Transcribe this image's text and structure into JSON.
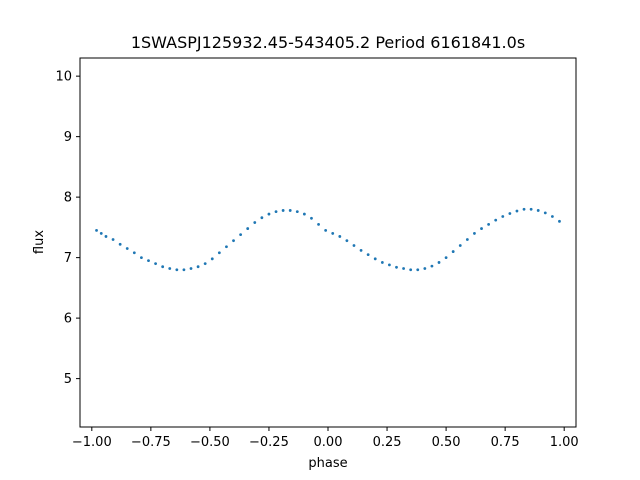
{
  "chart_data": {
    "type": "scatter",
    "title": "1SWASPJ125932.45-543405.2 Period 6161841.0s",
    "xlabel": "phase",
    "ylabel": "flux",
    "xlim": [
      -1.05,
      1.05
    ],
    "ylim": [
      4.2,
      10.3
    ],
    "xticks": [
      -1.0,
      -0.75,
      -0.5,
      -0.25,
      0.0,
      0.25,
      0.5,
      0.75,
      1.0
    ],
    "xtick_labels": [
      "−1.00",
      "−0.75",
      "−0.50",
      "−0.25",
      "0.00",
      "0.25",
      "0.50",
      "0.75",
      "1.00"
    ],
    "yticks": [
      5,
      6,
      7,
      8,
      9,
      10
    ],
    "ytick_labels": [
      "5",
      "6",
      "7",
      "8",
      "9",
      "10"
    ],
    "grid": false,
    "legend": "none",
    "marker_color": "#1f77b4",
    "series": [
      {
        "x": [
          -0.98,
          -0.96,
          -0.94,
          -0.91,
          -0.88,
          -0.85,
          -0.82,
          -0.79,
          -0.76,
          -0.73,
          -0.7,
          -0.67,
          -0.64,
          -0.61,
          -0.58,
          -0.55,
          -0.52,
          -0.49,
          -0.46,
          -0.43,
          -0.4,
          -0.37,
          -0.34,
          -0.31,
          -0.28,
          -0.25,
          -0.22,
          -0.19,
          -0.16,
          -0.13,
          -0.1,
          -0.07,
          -0.04,
          -0.01,
          0.02,
          0.05,
          0.08,
          0.11,
          0.14,
          0.17,
          0.2,
          0.23,
          0.26,
          0.29,
          0.32,
          0.35,
          0.38,
          0.41,
          0.44,
          0.47,
          0.5,
          0.53,
          0.56,
          0.59,
          0.62,
          0.65,
          0.68,
          0.71,
          0.74,
          0.77,
          0.8,
          0.83,
          0.86,
          0.89,
          0.92,
          0.95,
          0.98
        ],
        "y": [
          7.45,
          7.4,
          7.35,
          7.3,
          7.22,
          7.15,
          7.08,
          7.0,
          6.95,
          6.9,
          6.85,
          6.82,
          6.8,
          6.8,
          6.82,
          6.85,
          6.9,
          6.98,
          7.08,
          7.18,
          7.28,
          7.38,
          7.48,
          7.58,
          7.66,
          7.72,
          7.76,
          7.78,
          7.78,
          7.76,
          7.72,
          7.65,
          7.55,
          7.45,
          7.4,
          7.35,
          7.28,
          7.2,
          7.12,
          7.05,
          6.98,
          6.92,
          6.88,
          6.84,
          6.82,
          6.8,
          6.8,
          6.82,
          6.86,
          6.92,
          7.0,
          7.1,
          7.2,
          7.3,
          7.4,
          7.48,
          7.55,
          7.62,
          7.68,
          7.73,
          7.77,
          7.8,
          7.8,
          7.78,
          7.74,
          7.68,
          7.6
        ]
      }
    ]
  }
}
